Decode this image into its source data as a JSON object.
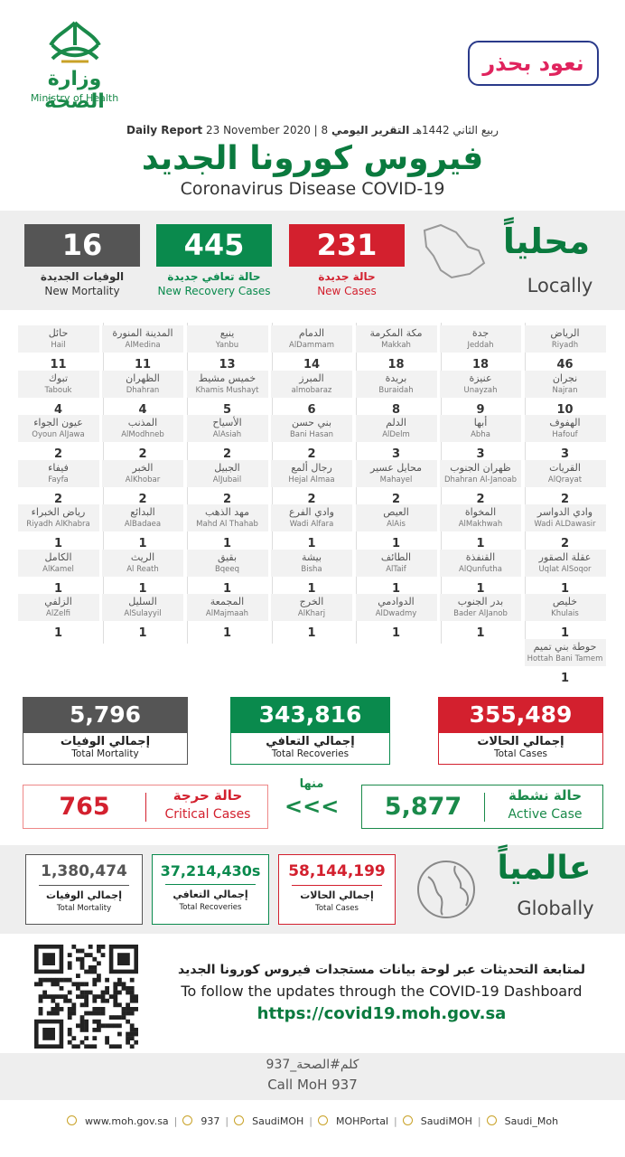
{
  "header": {
    "ministry_ar": "وزارة الصحة",
    "ministry_en": "Ministry of Health",
    "slogan": "نعود بحذر",
    "report_ar": "التقرير اليومي",
    "hijri_date": "8 ربيع الثاني 1442هـ",
    "gregorian_date": "23 November 2020",
    "report_en": "Daily Report",
    "title_ar": "فيروس كورونا الجديد",
    "title_en": "Coronavirus Disease COVID-19"
  },
  "locally": {
    "label_ar": "محلياً",
    "label_en": "Locally",
    "stats": [
      {
        "value": "231",
        "label_ar": "حالة جديدة",
        "label_en": "New Cases"
      },
      {
        "value": "445",
        "label_ar": "حالة تعافي جديدة",
        "label_en": "New Recovery Cases"
      },
      {
        "value": "16",
        "label_ar": "الوفيات الجديدة",
        "label_en": "New Mortality"
      }
    ]
  },
  "cities": [
    {
      "ar": "الرياض",
      "en": "Riyadh",
      "value": "46"
    },
    {
      "ar": "جدة",
      "en": "Jeddah",
      "value": "18"
    },
    {
      "ar": "مكة المكرمة",
      "en": "Makkah",
      "value": "18"
    },
    {
      "ar": "الدمام",
      "en": "AlDammam",
      "value": "14"
    },
    {
      "ar": "ينبع",
      "en": "Yanbu",
      "value": "13"
    },
    {
      "ar": "المدينة المنورة",
      "en": "AlMedina",
      "value": "11"
    },
    {
      "ar": "حائل",
      "en": "Hail",
      "value": "11"
    },
    {
      "ar": "نجران",
      "en": "Najran",
      "value": "10"
    },
    {
      "ar": "عنيزة",
      "en": "Unayzah",
      "value": "9"
    },
    {
      "ar": "بريدة",
      "en": "Buraidah",
      "value": "8"
    },
    {
      "ar": "المبرز",
      "en": "almobaraz",
      "value": "6"
    },
    {
      "ar": "خميس مشيط",
      "en": "Khamis Mushayt",
      "value": "5"
    },
    {
      "ar": "الظهران",
      "en": "Dhahran",
      "value": "4"
    },
    {
      "ar": "تبوك",
      "en": "Tabouk",
      "value": "4"
    },
    {
      "ar": "الهفوف",
      "en": "Hafouf",
      "value": "3"
    },
    {
      "ar": "أبها",
      "en": "Abha",
      "value": "3"
    },
    {
      "ar": "الدلم",
      "en": "AlDelm",
      "value": "3"
    },
    {
      "ar": "بني حسن",
      "en": "Bani Hasan",
      "value": "2"
    },
    {
      "ar": "الأسياح",
      "en": "AlAsiah",
      "value": "2"
    },
    {
      "ar": "المذنب",
      "en": "AlModhneb",
      "value": "2"
    },
    {
      "ar": "عيون الجواء",
      "en": "Oyoun AlJawa",
      "value": "2"
    },
    {
      "ar": "القريات",
      "en": "AlQrayat",
      "value": "2"
    },
    {
      "ar": "ظهران الجنوب",
      "en": "Dhahran Al-Janoab",
      "value": "2"
    },
    {
      "ar": "محايل عسير",
      "en": "Mahayel",
      "value": "2"
    },
    {
      "ar": "رجال ألمع",
      "en": "Hejal Almaa",
      "value": "2"
    },
    {
      "ar": "الجبيل",
      "en": "AlJubail",
      "value": "2"
    },
    {
      "ar": "الخبر",
      "en": "AlKhobar",
      "value": "2"
    },
    {
      "ar": "فيفاء",
      "en": "Fayfa",
      "value": "2"
    },
    {
      "ar": "وادي الدواسر",
      "en": "Wadi ALDawasir",
      "value": "2"
    },
    {
      "ar": "المخواة",
      "en": "AlMakhwah",
      "value": "1"
    },
    {
      "ar": "العيص",
      "en": "AlAis",
      "value": "1"
    },
    {
      "ar": "وادي الفرع",
      "en": "Wadi Alfara",
      "value": "1"
    },
    {
      "ar": "مهد الذهب",
      "en": "Mahd Al Thahab",
      "value": "1"
    },
    {
      "ar": "البدائع",
      "en": "AlBadaea",
      "value": "1"
    },
    {
      "ar": "رياض الخبراء",
      "en": "Riyadh AlKhabra",
      "value": "1"
    },
    {
      "ar": "عقلة الصقور",
      "en": "Uqlat AlSoqor",
      "value": "1"
    },
    {
      "ar": "القنفذة",
      "en": "AlQunfutha",
      "value": "1"
    },
    {
      "ar": "الطائف",
      "en": "AlTaif",
      "value": "1"
    },
    {
      "ar": "بيشة",
      "en": "Bisha",
      "value": "1"
    },
    {
      "ar": "بقيق",
      "en": "Bqeeq",
      "value": "1"
    },
    {
      "ar": "الريث",
      "en": "Al Reath",
      "value": "1"
    },
    {
      "ar": "الكامل",
      "en": "AlKamel",
      "value": "1"
    },
    {
      "ar": "خليص",
      "en": "Khulais",
      "value": "1"
    },
    {
      "ar": "بدر الجنوب",
      "en": "Bader AlJanob",
      "value": "1"
    },
    {
      "ar": "الدوادمي",
      "en": "AlDwadmy",
      "value": "1"
    },
    {
      "ar": "الخرج",
      "en": "AlKharj",
      "value": "1"
    },
    {
      "ar": "المجمعة",
      "en": "AlMajmaah",
      "value": "1"
    },
    {
      "ar": "السليل",
      "en": "AlSulayyil",
      "value": "1"
    },
    {
      "ar": "الزلفي",
      "en": "AlZelfi",
      "value": "1"
    },
    {
      "ar": "حوطة بني تميم",
      "en": "Hottah Bani Tamem",
      "value": "1"
    }
  ],
  "totals": [
    {
      "value": "355,489",
      "label_ar": "إجمالي الحالات",
      "label_en": "Total Cases"
    },
    {
      "value": "343,816",
      "label_ar": "إجمالي التعافي",
      "label_en": "Total Recoveries"
    },
    {
      "value": "5,796",
      "label_ar": "إجمالي الوفيات",
      "label_en": "Total Mortality"
    }
  ],
  "of_which": {
    "label": "منها",
    "arrows": "<<<"
  },
  "active": {
    "value": "5,877",
    "label_ar": "حالة نشطة",
    "label_en": "Active Case"
  },
  "critical": {
    "value": "765",
    "label_ar": "حالة حرجة",
    "label_en": "Critical Cases"
  },
  "globally": {
    "label_ar": "عالمياً",
    "label_en": "Globally",
    "stats": [
      {
        "value": "58,144,199",
        "label_ar": "إجمالي الحالات",
        "label_en": "Total Cases"
      },
      {
        "value": "37,214,430s",
        "label_ar": "إجمالي التعافي",
        "label_en": "Total Recoveries"
      },
      {
        "value": "1,380,474",
        "label_ar": "إجمالي الوفيات",
        "label_en": "Total Mortality"
      }
    ]
  },
  "dashboard": {
    "text_ar": "لمتابعة التحديثات عبر لوحة بيانات مستجدات فيروس كورونا الجديد",
    "text_en": "To follow the updates through the COVID-19 Dashboard",
    "url": "https://covid19.moh.gov.sa"
  },
  "call": {
    "text_ar": "كلم#الصحة_937",
    "text_en": "Call MoH 937"
  },
  "footer": [
    "www.moh.gov.sa",
    "937",
    "SaudiMOH",
    "MOHPortal",
    "SaudiMOH",
    "Saudi_Moh"
  ]
}
